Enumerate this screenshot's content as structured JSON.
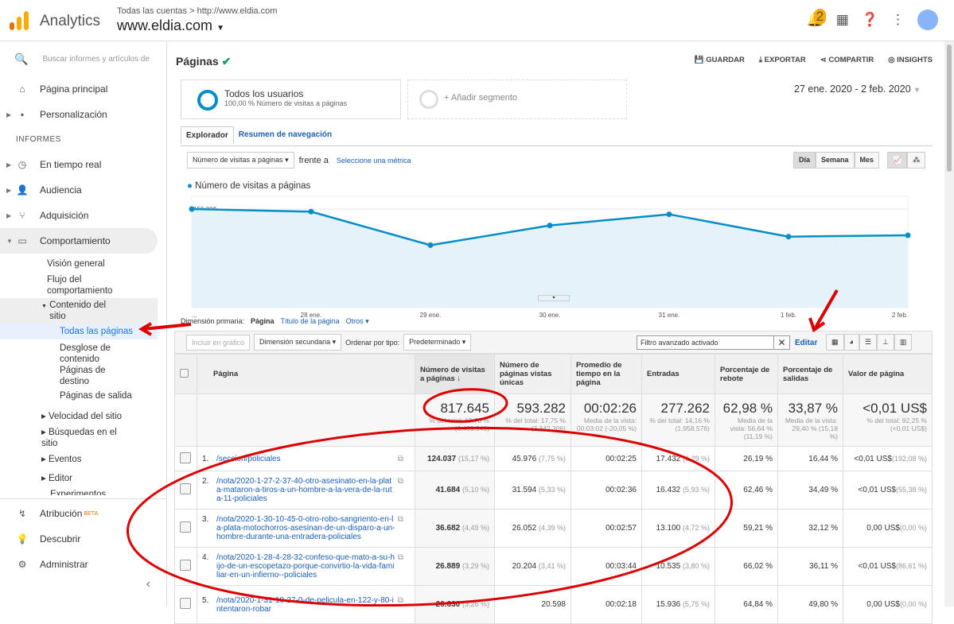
{
  "header": {
    "app_name": "Analytics",
    "breadcrumb": "Todas las cuentas > http://www.eldia.com",
    "property": "www.eldia.com",
    "notifications": "2"
  },
  "sidebar": {
    "search_placeholder": "Buscar informes y artículos de",
    "items": [
      {
        "label": "Página principal",
        "icon": "home-icon"
      },
      {
        "label": "Personalización",
        "icon": "dashboard-icon"
      }
    ],
    "section": "INFORMES",
    "reports": [
      {
        "label": "En tiempo real",
        "icon": "clock-icon"
      },
      {
        "label": "Audiencia",
        "icon": "person-icon"
      },
      {
        "label": "Adquisición",
        "icon": "acquisition-icon"
      },
      {
        "label": "Comportamiento",
        "icon": "behavior-icon"
      }
    ],
    "behavior_sub": [
      "Visión general",
      "Flujo del comportamiento"
    ],
    "content_label": "Contenido del sitio",
    "content_sub": [
      "Todas las páginas",
      "Desglose de contenido",
      "Páginas de destino",
      "Páginas de salida"
    ],
    "more_sub": [
      "Velocidad del sitio",
      "Búsquedas en el sitio",
      "Eventos",
      "Editor",
      "Experimentos"
    ],
    "bottom": [
      {
        "label": "Atribución",
        "badge": "BETA",
        "icon": "attribution-icon"
      },
      {
        "label": "Descubrir",
        "icon": "lightbulb-icon"
      },
      {
        "label": "Administrar",
        "icon": "gear-icon"
      }
    ]
  },
  "page": {
    "title": "Páginas",
    "actions": [
      "GUARDAR",
      "EXPORTAR",
      "COMPARTIR",
      "INSIGHTS"
    ],
    "segment": {
      "name": "Todos los usuarios",
      "desc": "100,00 % Número de visitas a páginas",
      "add": "+ Añadir segmento"
    },
    "date_range": "27 ene. 2020 - 2 feb. 2020",
    "tabs": [
      "Explorador",
      "Resumen de navegación"
    ],
    "metric_select": "Número de visitas a páginas",
    "vs": "frente a",
    "select_metric": "Seleccione una métrica",
    "periods": [
      "Día",
      "Semana",
      "Mes"
    ],
    "primary_dim_label": "Dimensión primaria:",
    "dims": [
      "Página",
      "Título de la página",
      "Otros"
    ],
    "toolbar": {
      "plot": "Incluir en gráfico",
      "secondary": "Dimensión secundaria",
      "sort_label": "Ordenar por tipo:",
      "sort": "Predeterminado",
      "filter": "Filtro avanzado activado",
      "edit": "Editar"
    }
  },
  "chart_data": {
    "type": "line",
    "series": [
      {
        "name": "Número de visitas a páginas",
        "values": [
          150000,
          146000,
          95000,
          125000,
          142000,
          108000,
          110000
        ]
      }
    ],
    "categories": [
      "...",
      "28 ene.",
      "29 ene.",
      "30 ene.",
      "31 ene.",
      "1 feb.",
      "2 feb."
    ],
    "yticks": [
      "150.000",
      "100.000",
      "50.000"
    ],
    "ylim": [
      0,
      160000
    ],
    "color": "#058dc7",
    "grid": true
  },
  "table": {
    "headers": [
      "Página",
      "Número de visitas a páginas",
      "Número de páginas vistas únicas",
      "Promedio de tiempo en la página",
      "Entradas",
      "Porcentaje de rebote",
      "Porcentaje de salidas",
      "Valor de página"
    ],
    "totals": [
      {
        "v": "817.645",
        "s": "% del total: 12,70 % (6.439.949)"
      },
      {
        "v": "593.282",
        "s": "% del total: 17,75 % (3.342.306)"
      },
      {
        "v": "00:02:26",
        "s": "Media de la vista: 00:03:02 (-20,05 %)"
      },
      {
        "v": "277.262",
        "s": "% del total: 14,16 % (1.958.576)"
      },
      {
        "v": "62,98 %",
        "s": "Media de la vista: 56,64 % (11,19 %)"
      },
      {
        "v": "33,87 %",
        "s": "Media de la vista: 29,40 % (15,18 %)"
      },
      {
        "v": "<0,01 US$",
        "s": "% del total: 92,25 % (<0,01 US$)"
      }
    ],
    "rows": [
      {
        "n": "1.",
        "page": "/seccion/policiales",
        "pv": "124.037",
        "pvp": "(15,17 %)",
        "u": "45.976",
        "up": "(7,75 %)",
        "t": "00:02:25",
        "e": "17.432",
        "ep": "(6,29 %)",
        "b": "26,19 %",
        "x": "16,44 %",
        "val": "<0,01 US$",
        "valp": "(192,08 %)"
      },
      {
        "n": "2.",
        "page": "/nota/2020-1-27-2-37-40-otro-asesinato-en-la-plata-mataron-a-tiros-a-un-hombre-a-la-vera-de-la-ruta-11-policiales",
        "pv": "41.684",
        "pvp": "(5,10 %)",
        "u": "31.594",
        "up": "(5,33 %)",
        "t": "00:02:36",
        "e": "16.432",
        "ep": "(5,93 %)",
        "b": "62,46 %",
        "x": "34,49 %",
        "val": "<0,01 US$",
        "valp": "(55,38 %)"
      },
      {
        "n": "3.",
        "page": "/nota/2020-1-30-10-45-0-otro-robo-sangriento-en-la-plata-motochorros-asesinan-de-un-disparo-a-un-hombre-durante-una-entradera-policiales",
        "pv": "36.682",
        "pvp": "(4,49 %)",
        "u": "26.052",
        "up": "(4,39 %)",
        "t": "00:02:57",
        "e": "13.100",
        "ep": "(4,72 %)",
        "b": "59,21 %",
        "x": "32,12 %",
        "val": "0,00 US$",
        "valp": "(0,00 %)"
      },
      {
        "n": "4.",
        "page": "/nota/2020-1-28-4-28-32-confeso-que-mato-a-su-hijo-de-un-escopetazo-porque-convirtio-la-vida-familiar-en-un-infierno--policiales",
        "pv": "26.889",
        "pvp": "(3,29 %)",
        "u": "20.204",
        "up": "(3,41 %)",
        "t": "00:03:44",
        "e": "10.535",
        "ep": "(3,80 %)",
        "b": "66,02 %",
        "x": "36,11 %",
        "val": "<0,01 US$",
        "valp": "(86,61 %)"
      },
      {
        "n": "5.",
        "page": "/nota/2020-1-31-10-27-0-de-pelicula-en-122-y-80-intentaron-robar",
        "pv": "26.630",
        "pvp": "(3,26 %)",
        "u": "20.598",
        "up": "",
        "t": "00:02:18",
        "e": "15.936",
        "ep": "(5,75 %)",
        "b": "64,84 %",
        "x": "49,80 %",
        "val": "0,00 US$",
        "valp": "(0,00 %)"
      }
    ]
  }
}
